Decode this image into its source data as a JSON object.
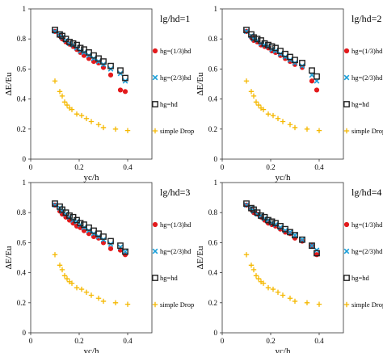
{
  "chart_data": [
    {
      "type": "scatter",
      "title": "lg/hd=1",
      "xlabel": "yc/h",
      "ylabel": "ΔE/Eu",
      "xlim": [
        0,
        0.5
      ],
      "ylim": [
        0,
        1
      ],
      "xticks": [
        "0",
        "0.2",
        "0.4"
      ],
      "yticks": [
        "0",
        "0.2",
        "0.4",
        "0.6",
        "0.8",
        "1"
      ],
      "legend_position": "right",
      "series": [
        {
          "name": "hg=(1/3)hd",
          "color": "#e31a1c",
          "marker": "circle",
          "x": [
            0.1,
            0.12,
            0.13,
            0.145,
            0.16,
            0.175,
            0.19,
            0.205,
            0.22,
            0.24,
            0.26,
            0.28,
            0.3,
            0.33,
            0.37,
            0.39
          ],
          "y": [
            0.85,
            0.82,
            0.8,
            0.78,
            0.765,
            0.75,
            0.73,
            0.71,
            0.69,
            0.67,
            0.65,
            0.64,
            0.61,
            0.56,
            0.46,
            0.45
          ]
        },
        {
          "name": "hg=(2/3)hd",
          "color": "#1a9fd9",
          "marker": "x",
          "x": [
            0.1,
            0.12,
            0.13,
            0.145,
            0.16,
            0.175,
            0.19,
            0.205,
            0.22,
            0.24,
            0.26,
            0.28,
            0.3,
            0.33,
            0.37,
            0.39
          ],
          "y": [
            0.85,
            0.83,
            0.81,
            0.79,
            0.77,
            0.76,
            0.74,
            0.72,
            0.71,
            0.69,
            0.67,
            0.65,
            0.63,
            0.6,
            0.57,
            0.52
          ]
        },
        {
          "name": "hg=hd",
          "color": "#222222",
          "marker": "square",
          "x": [
            0.1,
            0.12,
            0.13,
            0.145,
            0.16,
            0.175,
            0.19,
            0.205,
            0.22,
            0.24,
            0.26,
            0.28,
            0.3,
            0.33,
            0.37,
            0.39
          ],
          "y": [
            0.86,
            0.83,
            0.82,
            0.8,
            0.78,
            0.77,
            0.76,
            0.74,
            0.73,
            0.71,
            0.69,
            0.67,
            0.65,
            0.62,
            0.59,
            0.54
          ]
        },
        {
          "name": "simple Drop",
          "color": "#f5b800",
          "marker": "plus",
          "x": [
            0.1,
            0.12,
            0.13,
            0.14,
            0.15,
            0.16,
            0.17,
            0.19,
            0.21,
            0.23,
            0.25,
            0.28,
            0.3,
            0.35,
            0.4
          ],
          "y": [
            0.52,
            0.45,
            0.42,
            0.38,
            0.36,
            0.34,
            0.33,
            0.3,
            0.29,
            0.27,
            0.25,
            0.23,
            0.21,
            0.2,
            0.19
          ]
        }
      ]
    },
    {
      "type": "scatter",
      "title": "lg/hd=2",
      "xlabel": "yc/h",
      "ylabel": "ΔE/Eu",
      "xlim": [
        0,
        0.5
      ],
      "ylim": [
        0,
        1
      ],
      "xticks": [
        "0",
        "0.2",
        "0.4"
      ],
      "yticks": [
        "0",
        "0.2",
        "0.4",
        "0.6",
        "0.8",
        "1"
      ],
      "legend_position": "right",
      "series": [
        {
          "name": "hg=(1/3)hd",
          "color": "#e31a1c",
          "marker": "circle",
          "x": [
            0.1,
            0.12,
            0.13,
            0.145,
            0.16,
            0.175,
            0.19,
            0.205,
            0.22,
            0.24,
            0.26,
            0.28,
            0.3,
            0.33,
            0.37,
            0.39
          ],
          "y": [
            0.85,
            0.81,
            0.79,
            0.78,
            0.76,
            0.75,
            0.74,
            0.72,
            0.71,
            0.69,
            0.67,
            0.65,
            0.63,
            0.61,
            0.52,
            0.46
          ]
        },
        {
          "name": "hg=(2/3)hd",
          "color": "#1a9fd9",
          "marker": "x",
          "x": [
            0.1,
            0.12,
            0.13,
            0.145,
            0.16,
            0.175,
            0.19,
            0.205,
            0.22,
            0.24,
            0.26,
            0.28,
            0.3,
            0.33,
            0.37,
            0.39
          ],
          "y": [
            0.85,
            0.82,
            0.8,
            0.79,
            0.77,
            0.76,
            0.75,
            0.73,
            0.72,
            0.7,
            0.68,
            0.66,
            0.64,
            0.62,
            0.56,
            0.52
          ]
        },
        {
          "name": "hg=hd",
          "color": "#222222",
          "marker": "square",
          "x": [
            0.1,
            0.12,
            0.13,
            0.145,
            0.16,
            0.175,
            0.19,
            0.205,
            0.22,
            0.24,
            0.26,
            0.28,
            0.3,
            0.33,
            0.37,
            0.39
          ],
          "y": [
            0.86,
            0.83,
            0.81,
            0.8,
            0.79,
            0.77,
            0.76,
            0.75,
            0.74,
            0.72,
            0.7,
            0.68,
            0.66,
            0.64,
            0.59,
            0.55
          ]
        },
        {
          "name": "simple Drop",
          "color": "#f5b800",
          "marker": "plus",
          "x": [
            0.1,
            0.12,
            0.13,
            0.14,
            0.15,
            0.16,
            0.17,
            0.19,
            0.21,
            0.23,
            0.25,
            0.28,
            0.3,
            0.35,
            0.4
          ],
          "y": [
            0.52,
            0.45,
            0.42,
            0.38,
            0.36,
            0.34,
            0.33,
            0.3,
            0.29,
            0.27,
            0.25,
            0.23,
            0.21,
            0.2,
            0.19
          ]
        }
      ]
    },
    {
      "type": "scatter",
      "title": "lg/hd=3",
      "xlabel": "yc/h",
      "ylabel": "ΔE/Eu",
      "xlim": [
        0,
        0.5
      ],
      "ylim": [
        0,
        1
      ],
      "xticks": [
        "0",
        "0.2",
        "0.4"
      ],
      "yticks": [
        "0",
        "0.2",
        "0.4",
        "0.6",
        "0.8",
        "1"
      ],
      "legend_position": "right",
      "series": [
        {
          "name": "hg=(1/3)hd",
          "color": "#e31a1c",
          "marker": "circle",
          "x": [
            0.1,
            0.12,
            0.13,
            0.145,
            0.16,
            0.175,
            0.19,
            0.205,
            0.22,
            0.24,
            0.26,
            0.28,
            0.3,
            0.33,
            0.37,
            0.39
          ],
          "y": [
            0.85,
            0.81,
            0.79,
            0.77,
            0.75,
            0.73,
            0.71,
            0.7,
            0.68,
            0.66,
            0.64,
            0.63,
            0.6,
            0.56,
            0.55,
            0.52
          ]
        },
        {
          "name": "hg=(2/3)hd",
          "color": "#1a9fd9",
          "marker": "x",
          "x": [
            0.1,
            0.12,
            0.13,
            0.145,
            0.16,
            0.175,
            0.19,
            0.205,
            0.22,
            0.24,
            0.26,
            0.28,
            0.3,
            0.33,
            0.37,
            0.39
          ],
          "y": [
            0.85,
            0.83,
            0.81,
            0.79,
            0.77,
            0.75,
            0.74,
            0.72,
            0.7,
            0.68,
            0.66,
            0.64,
            0.62,
            0.59,
            0.57,
            0.54
          ]
        },
        {
          "name": "hg=hd",
          "color": "#222222",
          "marker": "square",
          "x": [
            0.1,
            0.12,
            0.13,
            0.145,
            0.16,
            0.175,
            0.19,
            0.205,
            0.22,
            0.24,
            0.26,
            0.28,
            0.3,
            0.33,
            0.37,
            0.39
          ],
          "y": [
            0.86,
            0.84,
            0.82,
            0.8,
            0.78,
            0.77,
            0.75,
            0.73,
            0.72,
            0.7,
            0.68,
            0.66,
            0.64,
            0.61,
            0.58,
            0.54
          ]
        },
        {
          "name": "simple Drop",
          "color": "#f5b800",
          "marker": "plus",
          "x": [
            0.1,
            0.12,
            0.13,
            0.14,
            0.15,
            0.16,
            0.17,
            0.19,
            0.21,
            0.23,
            0.25,
            0.28,
            0.3,
            0.35,
            0.4
          ],
          "y": [
            0.52,
            0.45,
            0.42,
            0.38,
            0.36,
            0.34,
            0.33,
            0.3,
            0.29,
            0.27,
            0.25,
            0.23,
            0.21,
            0.2,
            0.19
          ]
        }
      ]
    },
    {
      "type": "scatter",
      "title": "lg/hd=4",
      "xlabel": "yc/h",
      "ylabel": "ΔE/Eu",
      "xlim": [
        0,
        0.5
      ],
      "ylim": [
        0,
        1
      ],
      "xticks": [
        "0",
        "0.2",
        "0.4"
      ],
      "yticks": [
        "0",
        "0.2",
        "0.4",
        "0.6",
        "0.8",
        "1"
      ],
      "legend_position": "right",
      "series": [
        {
          "name": "hg=(1/3)hd",
          "color": "#e31a1c",
          "marker": "circle",
          "x": [
            0.1,
            0.12,
            0.13,
            0.145,
            0.16,
            0.175,
            0.19,
            0.205,
            0.22,
            0.24,
            0.26,
            0.28,
            0.3,
            0.33,
            0.37,
            0.39
          ],
          "y": [
            0.85,
            0.82,
            0.8,
            0.79,
            0.77,
            0.75,
            0.73,
            0.72,
            0.71,
            0.69,
            0.67,
            0.66,
            0.63,
            0.61,
            0.58,
            0.52
          ]
        },
        {
          "name": "hg=(2/3)hd",
          "color": "#1a9fd9",
          "marker": "x",
          "x": [
            0.1,
            0.12,
            0.13,
            0.145,
            0.16,
            0.175,
            0.19,
            0.205,
            0.22,
            0.24,
            0.26,
            0.28,
            0.3,
            0.33,
            0.37,
            0.39
          ],
          "y": [
            0.85,
            0.83,
            0.81,
            0.79,
            0.78,
            0.76,
            0.75,
            0.73,
            0.72,
            0.7,
            0.68,
            0.67,
            0.65,
            0.62,
            0.58,
            0.55
          ]
        },
        {
          "name": "hg=hd",
          "color": "#222222",
          "marker": "square",
          "x": [
            0.1,
            0.12,
            0.13,
            0.145,
            0.16,
            0.175,
            0.19,
            0.205,
            0.22,
            0.24,
            0.26,
            0.28,
            0.3,
            0.33,
            0.37,
            0.39
          ],
          "y": [
            0.86,
            0.83,
            0.82,
            0.8,
            0.78,
            0.77,
            0.75,
            0.74,
            0.73,
            0.71,
            0.69,
            0.67,
            0.65,
            0.62,
            0.58,
            0.53
          ]
        },
        {
          "name": "simple Drop",
          "color": "#f5b800",
          "marker": "plus",
          "x": [
            0.1,
            0.12,
            0.13,
            0.14,
            0.15,
            0.16,
            0.17,
            0.19,
            0.21,
            0.23,
            0.25,
            0.28,
            0.3,
            0.35,
            0.4
          ],
          "y": [
            0.52,
            0.45,
            0.42,
            0.38,
            0.36,
            0.34,
            0.33,
            0.3,
            0.29,
            0.27,
            0.25,
            0.23,
            0.21,
            0.2,
            0.19
          ]
        }
      ]
    }
  ]
}
